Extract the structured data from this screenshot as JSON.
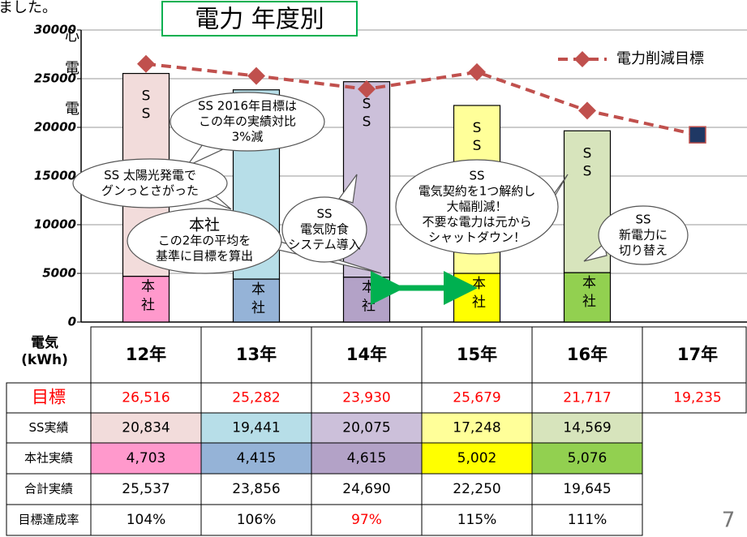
{
  "chart_data": {
    "type": "bar",
    "title": "電力 年度別",
    "background_text": [
      "ました。",
      "心",
      "電",
      "電"
    ],
    "categories": [
      "12年",
      "13年",
      "14年",
      "15年",
      "16年",
      "17年"
    ],
    "ylim": [
      0,
      30000
    ],
    "yticks": [
      0,
      5000,
      10000,
      15000,
      20000,
      25000,
      30000
    ],
    "grid": true,
    "legend": "top-right",
    "series": [
      {
        "name": "電力削減目標",
        "table_label": "目標",
        "kind": "line",
        "color": "#c0504d",
        "last_marker_color": "#1f3864",
        "values": [
          26516,
          25282,
          23930,
          25679,
          21717,
          19235
        ],
        "value_labels": [
          "26,516",
          "25,282",
          "23,930",
          "25,679",
          "21,717",
          "19,235"
        ]
      },
      {
        "name": "SS実績",
        "segment_label": "SS",
        "kind": "stack",
        "colors": [
          "#f2dcdb",
          "#b7dee8",
          "#ccc0da",
          "#ffff99",
          "#d7e4bc"
        ],
        "values": [
          20834,
          19441,
          20075,
          17248,
          14569,
          null
        ],
        "value_labels": [
          "20,834",
          "19,441",
          "20,075",
          "17,248",
          "14,569"
        ]
      },
      {
        "name": "本社実績",
        "segment_label": "本社",
        "kind": "stack",
        "colors": [
          "#ff99cc",
          "#95b3d7",
          "#b3a2c7",
          "#ffff00",
          "#92d050"
        ],
        "values": [
          4703,
          4415,
          4615,
          5002,
          5076,
          null
        ],
        "value_labels": [
          "4,703",
          "4,415",
          "4,615",
          "5,002",
          "5,076"
        ]
      }
    ],
    "table": {
      "header": [
        "電気",
        "(kWh)"
      ],
      "rows": [
        {
          "label": "合計実績",
          "cells": [
            "25,537",
            "23,856",
            "24,690",
            "22,250",
            "19,645"
          ]
        },
        {
          "label": "目標達成率",
          "cells": [
            "104%",
            "106%",
            "97%",
            "115%",
            "111%"
          ],
          "colors": [
            "#000000",
            "#000000",
            "#ff0000",
            "#000000",
            "#000000"
          ]
        }
      ]
    },
    "annotations": [
      [
        "SS 2016年目標は",
        "この年の実績対比",
        "3%減"
      ],
      [
        "SS 太陽光発電で",
        "グンっとさがった"
      ],
      [
        "本社",
        "この2年の平均を",
        "基準に目標を算出"
      ],
      [
        "SS",
        "電気防食",
        "システム導入"
      ],
      [
        "SS",
        "電気契約を1つ解約し",
        "大幅削減！",
        "不要な電力は元から",
        "シャットダウン！"
      ],
      [
        "SS",
        "新電力に",
        "切り替え"
      ]
    ],
    "page_number": "7"
  }
}
